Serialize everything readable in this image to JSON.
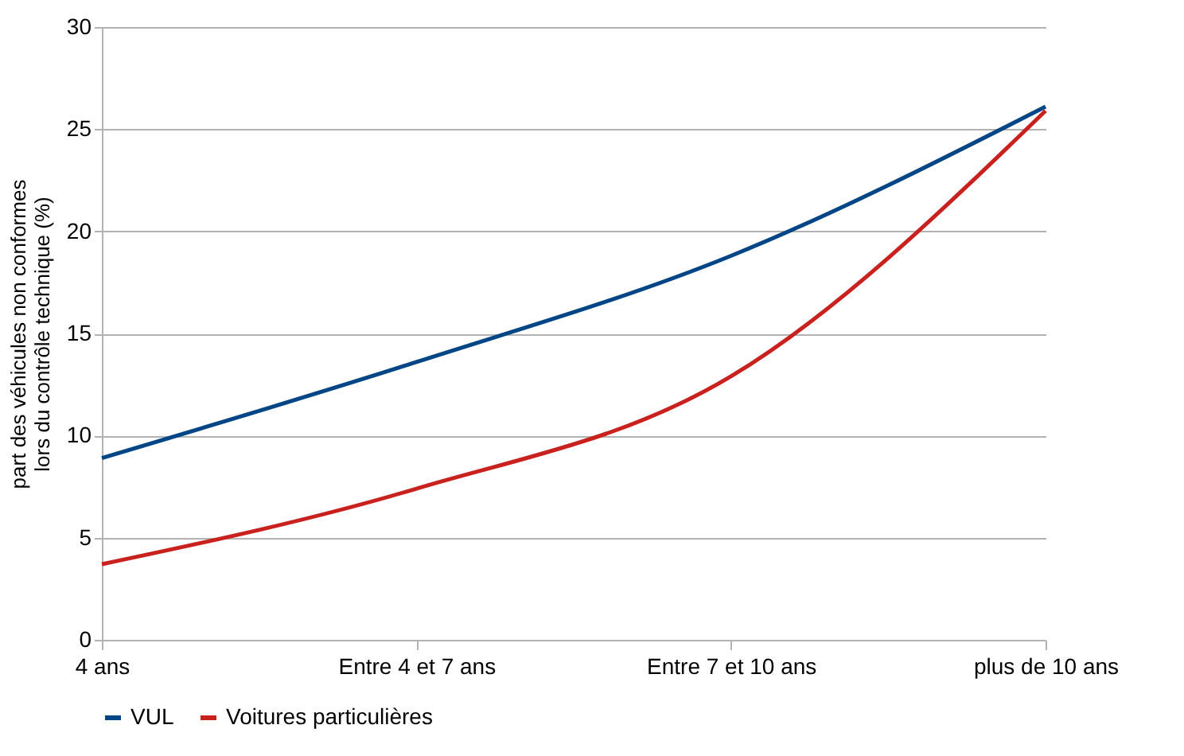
{
  "chart_data": {
    "type": "line",
    "ylabel": "part des véhicules non conformes\nlors du contrôle technique (%)",
    "categories": [
      "4 ans",
      "Entre 4 et 7 ans",
      "Entre 7 et 10 ans",
      "plus de 10 ans"
    ],
    "series": [
      {
        "name": "VUL",
        "color": "#004586",
        "values": [
          8.9,
          13.6,
          18.8,
          26.1
        ]
      },
      {
        "name": "Voitures particulières",
        "color": "#c9211e",
        "values": [
          3.7,
          7.4,
          12.9,
          25.9
        ]
      }
    ],
    "ylim": [
      0,
      30
    ],
    "yticks": [
      0,
      5,
      10,
      15,
      20,
      25,
      30
    ],
    "grid": "y",
    "legend": "bottom",
    "marker": "none",
    "line_style": "solid"
  }
}
